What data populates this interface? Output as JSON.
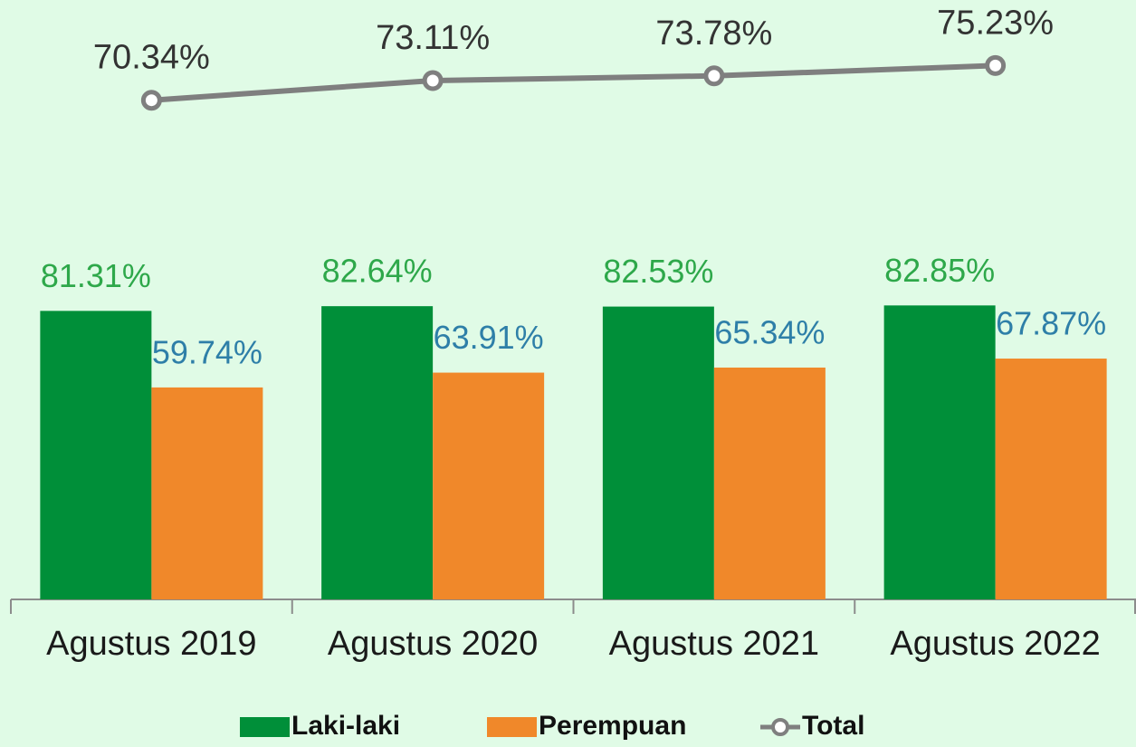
{
  "chart_data": {
    "type": "bar",
    "categories": [
      "Agustus 2019",
      "Agustus 2020",
      "Agustus 2021",
      "Agustus 2022"
    ],
    "ylim": [
      0,
      160
    ],
    "y2lim": [
      0,
      80
    ],
    "series": [
      {
        "name": "Laki-laki",
        "type": "bar",
        "color": "#008f39",
        "label_color": "#2ea84a",
        "values": [
          81.31,
          82.64,
          82.53,
          82.85
        ],
        "value_labels": [
          "81.31%",
          "82.64%",
          "82.53%",
          "82.85%"
        ]
      },
      {
        "name": "Perempuan",
        "type": "bar",
        "color": "#f0882a",
        "label_color": "#2e7fa8",
        "values": [
          59.74,
          63.91,
          65.34,
          67.87
        ],
        "value_labels": [
          "59.74%",
          "63.91%",
          "65.34%",
          "67.87%"
        ]
      },
      {
        "name": "Total",
        "type": "line",
        "axis": "y2",
        "color": "#7f7f7f",
        "label_color": "#333333",
        "values": [
          70.34,
          73.11,
          73.78,
          75.23
        ],
        "value_labels": [
          "70.34%",
          "73.11%",
          "73.78%",
          "75.23%"
        ]
      }
    ],
    "legend": "bottom"
  }
}
